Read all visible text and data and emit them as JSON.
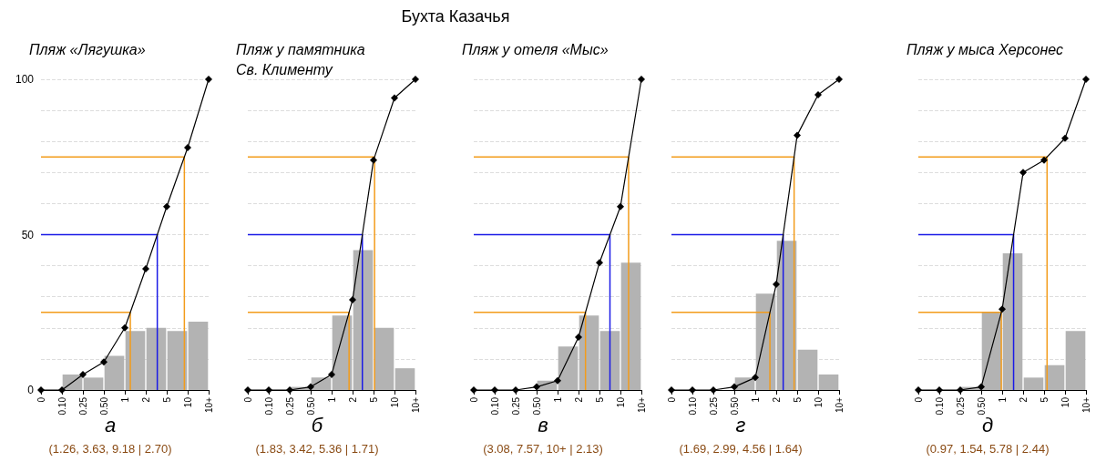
{
  "chart_data": [
    {
      "type": "bar",
      "title": "Пляж «Лягушка»",
      "xlabel": "а",
      "annotations": [
        "(1.26, 3.63, 9.18 | 2.70)",
        "Бухта Казачья"
      ],
      "categories": [
        "0",
        "0.10",
        "0.25",
        "0.50",
        "1",
        "2",
        "5",
        "10",
        "10+"
      ],
      "ylim": [
        0,
        100
      ],
      "yticks": [
        0,
        {
          "value": 10,
          "label": null
        },
        {
          "value": 20,
          "label": null
        },
        {
          "value": 30,
          "label": null
        },
        {
          "value": 40,
          "label": null
        },
        50,
        {
          "value": 60,
          "label": null
        },
        {
          "value": 70,
          "label": null
        },
        {
          "value": 80,
          "label": null
        },
        {
          "value": 90,
          "label": null
        },
        100
      ],
      "grid": "y",
      "series": [
        {
          "color": "#b3b3b3",
          "values": [
            0,
            5,
            4,
            11,
            19,
            20,
            19,
            22,
            null
          ]
        },
        {
          "type": "line",
          "color": "#000000",
          "marker": "diamond",
          "values": [
            0,
            0,
            5,
            9,
            20,
            39,
            59,
            78,
            100
          ]
        }
      ],
      "ref_lines": [
        {
          "axis": "y",
          "value": 25,
          "color": "#f39c1b"
        },
        {
          "axis": "y",
          "value": 50,
          "color": "#1a1ae6"
        },
        {
          "axis": "y",
          "value": 75,
          "color": "#f39c1b"
        }
      ]
    },
    {
      "type": "bar",
      "title": "Пляж у памятника\nСв. Клименту",
      "xlabel": "б",
      "annotations": [
        "(1.83, 3.42, 5.36 | 1.71)"
      ],
      "tick_labels": "x",
      "categories": [
        "0",
        "0.10",
        "0.25",
        "0.50",
        "1",
        "2",
        "5",
        "10",
        "10+"
      ],
      "ylim": [
        0,
        100
      ],
      "yticks": [
        0,
        {
          "value": 10,
          "label": null
        },
        {
          "value": 20,
          "label": null
        },
        {
          "value": 30,
          "label": null
        },
        {
          "value": 40,
          "label": null
        },
        50,
        {
          "value": 60,
          "label": null
        },
        {
          "value": 70,
          "label": null
        },
        {
          "value": 80,
          "label": null
        },
        {
          "value": 90,
          "label": null
        },
        100
      ],
      "grid": "y",
      "series": [
        {
          "color": "#b3b3b3",
          "values": [
            0,
            0,
            1,
            4,
            24,
            45,
            20,
            7,
            null
          ]
        },
        {
          "type": "line",
          "color": "#000000",
          "marker": "diamond",
          "values": [
            0,
            0,
            0,
            1,
            5,
            29,
            74,
            94,
            100
          ]
        }
      ],
      "ref_lines": [
        {
          "axis": "y",
          "value": 25,
          "color": "#f39c1b"
        },
        {
          "axis": "y",
          "value": 50,
          "color": "#1a1ae6"
        },
        {
          "axis": "y",
          "value": 75,
          "color": "#f39c1b"
        }
      ]
    },
    {
      "type": "bar",
      "title": "Пляж у отеля «Мыс»",
      "xlabel": "в",
      "annotations": [
        "(3.08, 7.57, 10+ | 2.13)"
      ],
      "tick_labels": "x",
      "categories": [
        "0",
        "0.10",
        "0.25",
        "0.50",
        "1",
        "2",
        "5",
        "10",
        "10+"
      ],
      "ylim": [
        0,
        100
      ],
      "yticks": [
        0,
        {
          "value": 10,
          "label": null
        },
        {
          "value": 20,
          "label": null
        },
        {
          "value": 30,
          "label": null
        },
        {
          "value": 40,
          "label": null
        },
        50,
        {
          "value": 60,
          "label": null
        },
        {
          "value": 70,
          "label": null
        },
        {
          "value": 80,
          "label": null
        },
        {
          "value": 90,
          "label": null
        },
        100
      ],
      "grid": "y",
      "series": [
        {
          "color": "#b3b3b3",
          "values": [
            0,
            0,
            0,
            3,
            14,
            24,
            19,
            41,
            null
          ]
        },
        {
          "type": "line",
          "color": "#000000",
          "marker": "diamond",
          "values": [
            0,
            0,
            0,
            1,
            3,
            17,
            41,
            59,
            100
          ]
        }
      ],
      "ref_lines": [
        {
          "axis": "y",
          "value": 25,
          "color": "#f39c1b"
        },
        {
          "axis": "y",
          "value": 50,
          "color": "#1a1ae6"
        },
        {
          "axis": "y",
          "value": 75,
          "color": "#f39c1b"
        }
      ]
    },
    {
      "type": "bar",
      "xlabel": "г",
      "annotations": [
        "(1.69, 2.99, 4.56 | 1.64)"
      ],
      "tick_labels": "x",
      "categories": [
        "0",
        "0.10",
        "0.25",
        "0.50",
        "1",
        "2",
        "5",
        "10",
        "10+"
      ],
      "ylim": [
        0,
        100
      ],
      "yticks": [
        0,
        {
          "value": 10,
          "label": null
        },
        {
          "value": 20,
          "label": null
        },
        {
          "value": 30,
          "label": null
        },
        {
          "value": 40,
          "label": null
        },
        50,
        {
          "value": 60,
          "label": null
        },
        {
          "value": 70,
          "label": null
        },
        {
          "value": 80,
          "label": null
        },
        {
          "value": 90,
          "label": null
        },
        100
      ],
      "grid": "y",
      "series": [
        {
          "color": "#b3b3b3",
          "values": [
            0,
            0,
            0,
            4,
            31,
            48,
            13,
            5,
            null
          ]
        },
        {
          "type": "line",
          "color": "#000000",
          "marker": "diamond",
          "values": [
            0,
            0,
            0,
            1,
            4,
            34,
            82,
            95,
            100
          ]
        }
      ],
      "ref_lines": [
        {
          "axis": "y",
          "value": 25,
          "color": "#f39c1b"
        },
        {
          "axis": "y",
          "value": 50,
          "color": "#1a1ae6"
        },
        {
          "axis": "y",
          "value": 75,
          "color": "#f39c1b"
        }
      ]
    },
    {
      "type": "bar",
      "title": "Пляж у мыса Херсонес",
      "xlabel": "д",
      "annotations": [
        "(0.97, 1.54, 5.78 | 2.44)"
      ],
      "tick_labels": "x",
      "categories": [
        "0",
        "0.10",
        "0.25",
        "0.50",
        "1",
        "2",
        "5",
        "10",
        "10+"
      ],
      "ylim": [
        0,
        100
      ],
      "yticks": [
        0,
        {
          "value": 10,
          "label": null
        },
        {
          "value": 20,
          "label": null
        },
        {
          "value": 30,
          "label": null
        },
        {
          "value": 40,
          "label": null
        },
        50,
        {
          "value": 60,
          "label": null
        },
        {
          "value": 70,
          "label": null
        },
        {
          "value": 80,
          "label": null
        },
        {
          "value": 90,
          "label": null
        },
        100
      ],
      "grid": "y",
      "series": [
        {
          "color": "#b3b3b3",
          "values": [
            0,
            0,
            1,
            25,
            44,
            4,
            8,
            19,
            null
          ]
        },
        {
          "type": "line",
          "color": "#000000",
          "marker": "diamond",
          "values": [
            0,
            0,
            0,
            1,
            26,
            70,
            74,
            81,
            100
          ]
        }
      ],
      "ref_lines": [
        {
          "axis": "y",
          "value": 25,
          "color": "#f39c1b"
        },
        {
          "axis": "y",
          "value": 50,
          "color": "#1a1ae6"
        },
        {
          "axis": "y",
          "value": 75,
          "color": "#f39c1b"
        }
      ]
    }
  ]
}
